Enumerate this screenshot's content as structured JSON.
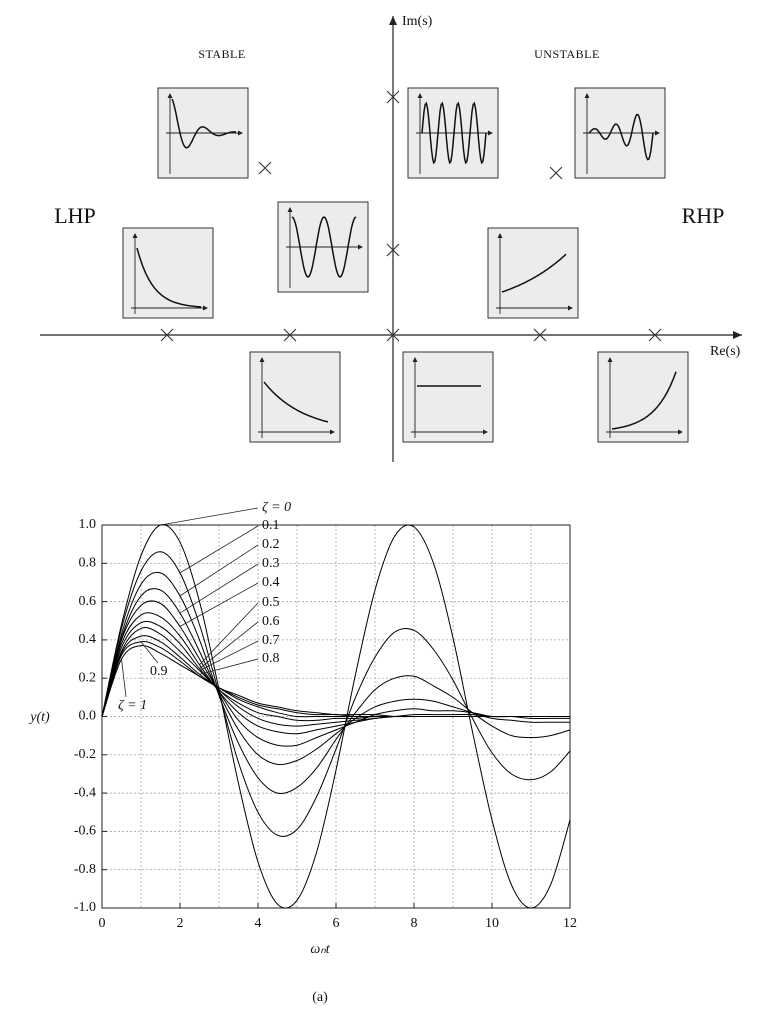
{
  "diagram": {
    "im_label": "Im(s)",
    "re_label": "Re(s)",
    "stable": "STABLE",
    "unstable": "UNSTABLE",
    "lhp": "LHP",
    "rhp": "RHP"
  },
  "chart_data": {
    "type": "line",
    "xlabel": "ωₙt",
    "ylabel": "y(t)",
    "caption": "(a)",
    "x": [
      0,
      0.5,
      1,
      1.5,
      2,
      2.5,
      3,
      3.5,
      4,
      4.5,
      5,
      5.5,
      6,
      6.5,
      7,
      7.5,
      8,
      8.5,
      9,
      9.5,
      10,
      10.5,
      11,
      11.5,
      12
    ],
    "xlim": [
      0,
      12
    ],
    "xticks": [
      0,
      2,
      4,
      6,
      8,
      10,
      12
    ],
    "x_gridlines": [
      1,
      3,
      5,
      7,
      9,
      11
    ],
    "ylim": [
      -1,
      1
    ],
    "yticks": [
      {
        "value": 1,
        "label": "1.0"
      },
      0.8,
      0.6,
      0.4,
      0.2,
      {
        "value": 0,
        "label": "0.0"
      },
      -0.2,
      -0.4,
      -0.6,
      -0.8,
      {
        "value": -1,
        "label": "-1.0"
      }
    ],
    "grid": true,
    "series": [
      {
        "name": "ζ = 0",
        "color": "#000000",
        "values": [
          0,
          0.48,
          0.84,
          1.0,
          0.91,
          0.6,
          0.14,
          -0.35,
          -0.76,
          -0.98,
          -0.96,
          -0.71,
          -0.28,
          0.22,
          0.66,
          0.94,
          0.99,
          0.8,
          0.41,
          -0.08,
          -0.54,
          -0.88,
          -1.0,
          -0.88,
          -0.54
        ]
      },
      {
        "name": "0.1",
        "color": "#000000",
        "values": [
          0,
          0.46,
          0.76,
          0.86,
          0.75,
          0.48,
          0.12,
          -0.24,
          -0.5,
          -0.62,
          -0.59,
          -0.42,
          -0.17,
          0.1,
          0.31,
          0.44,
          0.45,
          0.35,
          0.19,
          -0.01,
          -0.19,
          -0.3,
          -0.33,
          -0.29,
          -0.18
        ]
      },
      {
        "name": "0.2",
        "color": "#000000",
        "values": [
          0,
          0.43,
          0.69,
          0.75,
          0.63,
          0.4,
          0.11,
          -0.14,
          -0.32,
          -0.4,
          -0.37,
          -0.27,
          -0.12,
          0.02,
          0.14,
          0.2,
          0.21,
          0.16,
          0.1,
          0.02,
          -0.05,
          -0.1,
          -0.11,
          -0.1,
          -0.07
        ]
      },
      {
        "name": "0.3",
        "color": "#000000",
        "values": [
          0,
          0.41,
          0.63,
          0.66,
          0.54,
          0.34,
          0.12,
          -0.07,
          -0.2,
          -0.25,
          -0.23,
          -0.17,
          -0.09,
          -0.01,
          0.05,
          0.08,
          0.09,
          0.08,
          0.05,
          0.02,
          -0.01,
          -0.02,
          -0.03,
          -0.03,
          -0.03
        ]
      },
      {
        "name": "0.4",
        "color": "#000000",
        "values": [
          0,
          0.4,
          0.58,
          0.59,
          0.47,
          0.3,
          0.13,
          -0.02,
          -0.11,
          -0.15,
          -0.15,
          -0.11,
          -0.07,
          -0.03,
          0.01,
          0.03,
          0.04,
          0.03,
          0.03,
          0.02,
          0,
          0,
          -0.01,
          -0.01,
          -0.01
        ]
      },
      {
        "name": "0.5",
        "color": "#000000",
        "values": [
          0,
          0.38,
          0.53,
          0.52,
          0.42,
          0.27,
          0.13,
          0.02,
          -0.05,
          -0.08,
          -0.09,
          -0.07,
          -0.05,
          -0.03,
          -0.01,
          0,
          0.01,
          0.01,
          0.01,
          0.01,
          0,
          0,
          0,
          0,
          0
        ]
      },
      {
        "name": "0.6",
        "color": "#000000",
        "values": [
          0,
          0.36,
          0.49,
          0.47,
          0.38,
          0.25,
          0.14,
          0.05,
          -0.01,
          -0.04,
          -0.05,
          -0.04,
          -0.03,
          -0.02,
          -0.01,
          0,
          0,
          0,
          0,
          0,
          0,
          0,
          0,
          0,
          0
        ]
      },
      {
        "name": "0.7",
        "color": "#000000",
        "values": [
          0,
          0.34,
          0.46,
          0.43,
          0.34,
          0.24,
          0.14,
          0.07,
          0.02,
          0,
          -0.02,
          -0.02,
          -0.01,
          -0.01,
          0,
          0,
          0,
          0,
          0,
          0,
          0,
          0,
          0,
          0,
          0
        ]
      },
      {
        "name": "0.8",
        "color": "#000000",
        "values": [
          0,
          0.33,
          0.42,
          0.39,
          0.31,
          0.22,
          0.15,
          0.09,
          0.05,
          0.02,
          0,
          0,
          0,
          0,
          0,
          0,
          0,
          0,
          0,
          0,
          0,
          0,
          0,
          0,
          0
        ]
      },
      {
        "name": "0.9",
        "color": "#000000",
        "values": [
          0,
          0.32,
          0.39,
          0.36,
          0.29,
          0.21,
          0.15,
          0.1,
          0.06,
          0.04,
          0.02,
          0.01,
          0.01,
          0,
          0,
          0,
          0,
          0,
          0,
          0,
          0,
          0,
          0,
          0,
          0
        ]
      },
      {
        "name": "ζ = 1",
        "color": "#000000",
        "values": [
          0,
          0.3,
          0.37,
          0.33,
          0.27,
          0.21,
          0.15,
          0.11,
          0.07,
          0.05,
          0.03,
          0.02,
          0.01,
          0.01,
          0.01,
          0,
          0,
          0,
          0,
          0,
          0,
          0,
          0,
          0,
          0
        ]
      }
    ]
  }
}
